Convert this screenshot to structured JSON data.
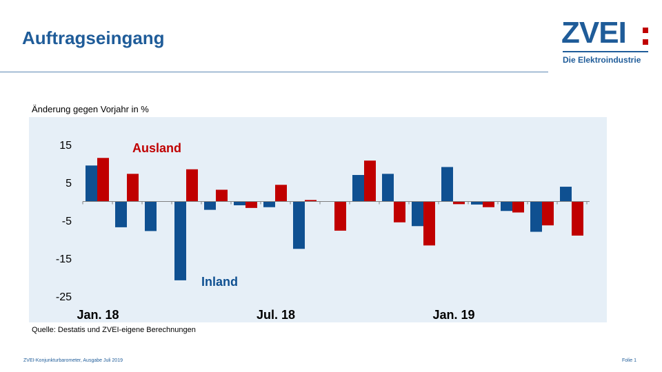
{
  "header": {
    "title": "Auftragseingang"
  },
  "logo": {
    "word": "ZVEI",
    "subtitle": "Die Elektroindustrie"
  },
  "colors": {
    "inland": "#0f5091",
    "ausland": "#c00000",
    "title": "#1f5c99",
    "plot_bg": "#e6eff7"
  },
  "chart_data": {
    "type": "bar",
    "ylabel": "Änderung gegen Vorjahr in %",
    "ylim": [
      -25,
      15
    ],
    "yticks": [
      15,
      5,
      -5,
      -15,
      -25
    ],
    "months": [
      "Jan. 18",
      "Feb. 18",
      "Mär. 18",
      "Apr. 18",
      "Mai 18",
      "Jun. 18",
      "Jul. 18",
      "Aug. 18",
      "Sep. 18",
      "Okt. 18",
      "Nov. 18",
      "Dez. 18",
      "Jan. 19",
      "Feb. 19",
      "Mär. 19",
      "Apr. 19",
      "May 19"
    ],
    "x_tick_labels": [
      {
        "label": "Jan. 18",
        "month_index": 0
      },
      {
        "label": "Jul. 18",
        "month_index": 6
      },
      {
        "label": "Jan. 19",
        "month_index": 12
      }
    ],
    "series": [
      {
        "name": "Inland",
        "color": "#0f5091",
        "values": [
          9.5,
          -6.8,
          -7.8,
          -20.8,
          -2.2,
          -1.0,
          -1.5,
          -12.5,
          0,
          7,
          7.3,
          -6.5,
          9.1,
          -0.8,
          -2.5,
          -8,
          3.9
        ]
      },
      {
        "name": "Ausland",
        "color": "#c00000",
        "values": [
          11.5,
          7.3,
          0,
          8.5,
          3.1,
          -1.7,
          4.4,
          0.4,
          -7.7,
          10.8,
          -5.5,
          -11.6,
          -0.7,
          -1.5,
          -2.9,
          -6.3,
          -9
        ]
      }
    ],
    "annotations": {
      "ausland_label": "Ausland",
      "inland_label": "Inland"
    }
  },
  "source": "Quelle: Destatis und ZVEI-eigene Berechnungen",
  "footer": {
    "left": "ZVEI-Konjunkturbarometer,   Ausgabe Juli 2019",
    "right": "Folie 1"
  }
}
